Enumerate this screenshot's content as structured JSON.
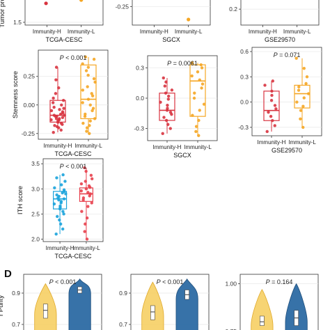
{
  "figure": {
    "panel_letter": "D",
    "colors": {
      "immunity_h": "#d8333f",
      "immunity_l": "#f5a623",
      "ith_h": "#1aa3dc",
      "ith_l": "#e8404d",
      "violin_yellow": "#f6cc5a",
      "violin_blue": "#2c6aa3",
      "grid": "#e7e7e7",
      "frame": "#333333"
    }
  },
  "chart_data": [
    {
      "id": "p1",
      "type": "scatter",
      "xlabel": "TCGA-CESC",
      "ylabel": "Tumor proli",
      "categories": [
        "Immunity-H",
        "Immunity-L"
      ],
      "ylim": [
        1.4,
        2.4
      ],
      "yticks": [
        {
          "v": 1.5,
          "t": "1.5"
        }
      ],
      "series": [
        {
          "category": "Immunity-H",
          "points": [
            2.18,
            2.38
          ]
        },
        {
          "category": "Immunity-L",
          "points": [
            2.3,
            2.31
          ]
        }
      ]
    },
    {
      "id": "p2",
      "type": "scatter",
      "xlabel": "SGCX",
      "ylabel": "",
      "categories": [
        "Immunity-H",
        "Immunity-L"
      ],
      "ylim": [
        -0.45,
        -0.15
      ],
      "yticks": [
        {
          "v": -0.25,
          "t": "-0.25"
        }
      ],
      "series": [
        {
          "category": "Immunity-H",
          "points": []
        },
        {
          "category": "Immunity-L",
          "points": [
            -0.39
          ]
        }
      ]
    },
    {
      "id": "p3",
      "type": "scatter",
      "xlabel": "GSE29570",
      "ylabel": "",
      "categories": [
        "Immunity-H",
        "Immunity-L"
      ],
      "ylim": [
        0.0,
        0.35
      ],
      "yticks": [
        {
          "v": 0.2,
          "t": "0.2"
        }
      ],
      "series": [
        {
          "category": "Immunity-H",
          "points": []
        },
        {
          "category": "Immunity-L",
          "points": []
        }
      ]
    },
    {
      "id": "p4",
      "type": "box",
      "xlabel": "TCGA-CESC",
      "ylabel": "Stemness score",
      "pvalue": "P < 0.001",
      "categories": [
        "Immunity-H",
        "Immunity-L"
      ],
      "ylim": [
        -0.3,
        0.48
      ],
      "yticks": [
        {
          "v": 0.25,
          "t": "0.25"
        },
        {
          "v": 0.0,
          "t": "0.00"
        },
        {
          "v": -0.25,
          "t": "-0.25"
        }
      ],
      "boxes": [
        {
          "category": "Immunity-H",
          "min": -0.24,
          "q1": -0.15,
          "median": -0.09,
          "q3": 0.04,
          "max": 0.33,
          "points": [
            -0.24,
            -0.22,
            -0.2,
            -0.19,
            -0.18,
            -0.17,
            -0.16,
            -0.15,
            -0.15,
            -0.14,
            -0.13,
            -0.13,
            -0.12,
            -0.12,
            -0.11,
            -0.1,
            -0.1,
            -0.09,
            -0.09,
            -0.08,
            -0.07,
            -0.06,
            -0.05,
            -0.04,
            -0.03,
            -0.02,
            0.0,
            0.02,
            0.04,
            0.06,
            0.1,
            0.15,
            0.22,
            0.33
          ]
        },
        {
          "category": "Immunity-L",
          "min": -0.25,
          "q1": -0.12,
          "median": 0.05,
          "q3": 0.35,
          "max": 0.42,
          "points": [
            -0.25,
            -0.23,
            -0.2,
            -0.18,
            -0.16,
            -0.14,
            -0.12,
            -0.1,
            -0.08,
            -0.05,
            -0.03,
            0.0,
            0.02,
            0.05,
            0.08,
            0.1,
            0.13,
            0.16,
            0.2,
            0.23,
            0.26,
            0.3,
            0.33,
            0.36,
            0.4,
            0.42
          ]
        }
      ]
    },
    {
      "id": "p5",
      "type": "box",
      "xlabel": "SGCX",
      "ylabel": "",
      "pvalue": "P = 0.0061",
      "categories": [
        "Immunity-H",
        "Immunity-L"
      ],
      "ylim": [
        -0.42,
        0.42
      ],
      "yticks": [
        {
          "v": 0.3,
          "t": "0.3"
        },
        {
          "v": 0.0,
          "t": "0.0"
        },
        {
          "v": -0.3,
          "t": "-0.3"
        }
      ],
      "boxes": [
        {
          "category": "Immunity-H",
          "min": -0.35,
          "q1": -0.22,
          "median": -0.12,
          "q3": 0.05,
          "max": 0.2,
          "points": [
            -0.35,
            -0.3,
            -0.26,
            -0.22,
            -0.19,
            -0.16,
            -0.14,
            -0.12,
            -0.1,
            -0.07,
            -0.04,
            -0.01,
            0.02,
            0.05,
            0.08,
            0.12,
            0.16,
            0.2
          ]
        },
        {
          "category": "Immunity-L",
          "min": -0.37,
          "q1": -0.18,
          "median": 0.17,
          "q3": 0.33,
          "max": 0.35,
          "points": [
            -0.37,
            -0.33,
            -0.28,
            -0.22,
            -0.17,
            -0.12,
            -0.06,
            0.0,
            0.05,
            0.1,
            0.14,
            0.18,
            0.22,
            0.26,
            0.3,
            0.33,
            0.35
          ]
        }
      ]
    },
    {
      "id": "p6",
      "type": "box",
      "xlabel": "GSE29570",
      "ylabel": "",
      "pvalue": "P = 0.071",
      "categories": [
        "Immunity-H",
        "Immunity-L"
      ],
      "ylim": [
        -0.4,
        0.65
      ],
      "yticks": [
        {
          "v": 0.6,
          "t": "0.6"
        },
        {
          "v": 0.3,
          "t": "0.3"
        },
        {
          "v": 0.0,
          "t": "0.0"
        },
        {
          "v": -0.3,
          "t": "-0.3"
        }
      ],
      "boxes": [
        {
          "category": "Immunity-H",
          "min": -0.35,
          "q1": -0.22,
          "median": -0.1,
          "q3": 0.13,
          "max": 0.25,
          "points": [
            -0.35,
            -0.28,
            -0.22,
            -0.17,
            -0.12,
            -0.08,
            -0.04,
            0.02,
            0.08,
            0.13,
            0.2,
            0.25
          ]
        },
        {
          "category": "Immunity-L",
          "min": -0.3,
          "q1": -0.07,
          "median": 0.1,
          "q3": 0.2,
          "max": 0.52,
          "points": [
            -0.3,
            -0.2,
            -0.1,
            -0.05,
            0.0,
            0.05,
            0.1,
            0.14,
            0.18,
            0.22,
            0.3,
            0.4,
            0.52
          ]
        }
      ]
    },
    {
      "id": "p7",
      "type": "box",
      "xlabel": "TCGA-CESC",
      "ylabel": "ITH score",
      "pvalue": "P < 0.001",
      "categories": [
        "Immunity-H",
        "Immunity-L"
      ],
      "ylim": [
        1.95,
        3.6
      ],
      "yticks": [
        {
          "v": 3.5,
          "t": "3.5"
        },
        {
          "v": 3.0,
          "t": "3.0"
        },
        {
          "v": 2.5,
          "t": "2.5"
        },
        {
          "v": 2.0,
          "t": "2.0"
        }
      ],
      "color_key": [
        "ith_h",
        "ith_l"
      ],
      "boxes": [
        {
          "category": "Immunity-H",
          "min": 2.1,
          "q1": 2.6,
          "median": 2.8,
          "q3": 2.95,
          "max": 3.28,
          "points": [
            2.1,
            2.2,
            2.3,
            2.38,
            2.45,
            2.5,
            2.55,
            2.6,
            2.63,
            2.66,
            2.7,
            2.72,
            2.75,
            2.78,
            2.8,
            2.82,
            2.85,
            2.88,
            2.9,
            2.92,
            2.95,
            2.98,
            3.02,
            3.08,
            3.15,
            3.22,
            3.28
          ]
        },
        {
          "category": "Immunity-L",
          "min": 2.0,
          "q1": 2.75,
          "median": 2.9,
          "q3": 3.02,
          "max": 3.42,
          "points": [
            2.0,
            2.15,
            2.3,
            2.42,
            2.55,
            2.65,
            2.72,
            2.78,
            2.82,
            2.86,
            2.9,
            2.93,
            2.96,
            3.0,
            3.03,
            3.06,
            3.1,
            3.15,
            3.2,
            3.27,
            3.35,
            3.42
          ]
        }
      ]
    },
    {
      "id": "p8",
      "type": "violin",
      "xlabel": "",
      "ylabel": "r Purity",
      "pvalue": "P < 0.001",
      "categories": [
        "Immunity-H",
        "Immunity-L"
      ],
      "ylim": [
        0.62,
        1.02
      ],
      "yticks": [
        {
          "v": 0.9,
          "t": "0.9"
        },
        {
          "v": 0.7,
          "t": "0.7"
        }
      ],
      "violins": [
        {
          "category": "Immunity-H",
          "median": 0.79,
          "q1": 0.74,
          "q3": 0.83,
          "max": 0.96
        },
        {
          "category": "Immunity-L",
          "median": 0.92,
          "q1": 0.9,
          "q3": 0.94,
          "max": 0.99
        }
      ]
    },
    {
      "id": "p9",
      "type": "violin",
      "xlabel": "",
      "ylabel": "",
      "pvalue": "P < 0.001",
      "categories": [
        "Immunity-H",
        "Immunity-L"
      ],
      "ylim": [
        0.62,
        1.02
      ],
      "yticks": [
        {
          "v": 0.9,
          "t": "0.9"
        },
        {
          "v": 0.7,
          "t": "0.7"
        }
      ],
      "violins": [
        {
          "category": "Immunity-H",
          "median": 0.78,
          "q1": 0.73,
          "q3": 0.82,
          "max": 0.97
        },
        {
          "category": "Immunity-L",
          "median": 0.89,
          "q1": 0.86,
          "q3": 0.92,
          "max": 0.99
        }
      ]
    },
    {
      "id": "p10",
      "type": "violin",
      "xlabel": "",
      "ylabel": "",
      "pvalue": "P = 0.164",
      "categories": [
        "Immunity-H",
        "Immunity-L"
      ],
      "ylim": [
        0.72,
        1.05
      ],
      "yticks": [
        {
          "v": 1.0,
          "t": "1.00"
        },
        {
          "v": 0.75,
          "t": "0.75"
        }
      ],
      "violins": [
        {
          "category": "Immunity-H",
          "median": 0.8,
          "q1": 0.78,
          "q3": 0.83,
          "max": 0.97
        },
        {
          "category": "Immunity-L",
          "median": 0.82,
          "q1": 0.78,
          "q3": 0.86,
          "max": 1.0
        }
      ]
    }
  ]
}
